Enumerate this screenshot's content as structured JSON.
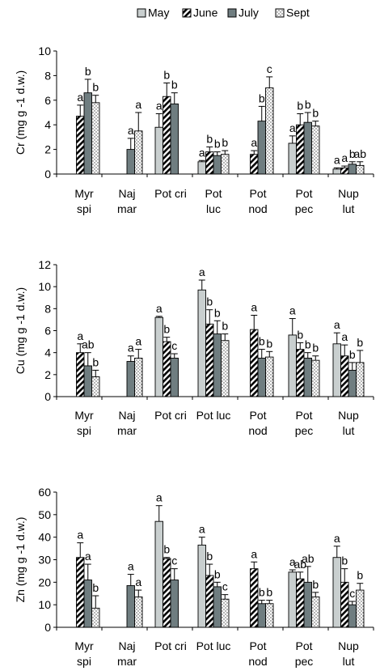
{
  "legend": {
    "position": "top",
    "items": [
      {
        "label": "May",
        "pattern": "light-grey"
      },
      {
        "label": "June",
        "pattern": "diagonal-hatch"
      },
      {
        "label": "July",
        "pattern": "dark-grey"
      },
      {
        "label": "Sept",
        "pattern": "dotted"
      }
    ]
  },
  "colors": {
    "may": "#c9cfcf",
    "july": "#6f7d80",
    "axis": "#000000",
    "background": "#ffffff"
  },
  "chart_data": [
    {
      "type": "bar",
      "ylabel": "Cr (mg g -1 d.w.)",
      "ylim": [
        0,
        10
      ],
      "yticks": [
        0,
        2,
        4,
        6,
        8,
        10
      ],
      "categories": [
        [
          "Myr",
          "spi"
        ],
        [
          "Naj",
          "mar"
        ],
        [
          "Pot cri"
        ],
        [
          "Pot",
          "luc"
        ],
        [
          "Pot",
          "nod"
        ],
        [
          "Pot",
          "pec"
        ],
        [
          "Nup",
          "lut"
        ]
      ],
      "series": [
        {
          "name": "May",
          "values": [
            null,
            null,
            3.8,
            1.0,
            null,
            2.5,
            0.4
          ],
          "errors": [
            null,
            null,
            1.1,
            0.1,
            null,
            0.6,
            0.1
          ]
        },
        {
          "name": "June",
          "values": [
            4.7,
            null,
            6.3,
            1.8,
            1.6,
            4.0,
            0.5
          ],
          "errors": [
            0.9,
            null,
            1.1,
            0.4,
            0.3,
            0.9,
            0.15
          ]
        },
        {
          "name": "July",
          "values": [
            6.6,
            2.0,
            5.7,
            1.5,
            4.3,
            4.2,
            0.8
          ],
          "errors": [
            1.1,
            0.9,
            0.9,
            0.3,
            1.2,
            0.8,
            0.2
          ]
        },
        {
          "name": "Sept",
          "values": [
            5.8,
            3.5,
            null,
            1.6,
            7.0,
            3.9,
            0.7
          ],
          "errors": [
            0.6,
            1.5,
            null,
            0.3,
            0.9,
            0.4,
            0.3
          ]
        }
      ],
      "annotations": [
        {
          "category": 0,
          "series": 1,
          "text": "a"
        },
        {
          "category": 0,
          "series": 2,
          "text": "b"
        },
        {
          "category": 0,
          "series": 3,
          "text": "b"
        },
        {
          "category": 1,
          "series": 2,
          "text": "a"
        },
        {
          "category": 1,
          "series": 3,
          "text": "a"
        },
        {
          "category": 2,
          "series": 0,
          "text": "a"
        },
        {
          "category": 2,
          "series": 1,
          "text": "b"
        },
        {
          "category": 2,
          "series": 2,
          "text": "b"
        },
        {
          "category": 3,
          "series": 0,
          "text": "a"
        },
        {
          "category": 3,
          "series": 1,
          "text": "b"
        },
        {
          "category": 3,
          "series": 2,
          "text": "b"
        },
        {
          "category": 3,
          "series": 3,
          "text": "b"
        },
        {
          "category": 4,
          "series": 1,
          "text": "a"
        },
        {
          "category": 4,
          "series": 2,
          "text": "b"
        },
        {
          "category": 4,
          "series": 3,
          "text": "c"
        },
        {
          "category": 5,
          "series": 0,
          "text": "a"
        },
        {
          "category": 5,
          "series": 1,
          "text": "b"
        },
        {
          "category": 5,
          "series": 2,
          "text": "b"
        },
        {
          "category": 5,
          "series": 3,
          "text": "b"
        },
        {
          "category": 6,
          "series": 0,
          "text": "a"
        },
        {
          "category": 6,
          "series": 1,
          "text": "a"
        },
        {
          "category": 6,
          "series": 2,
          "text": "b"
        },
        {
          "category": 6,
          "series": 3,
          "text": "ab"
        }
      ]
    },
    {
      "type": "bar",
      "ylabel": "Cu (mg g -1 d.w.)",
      "ylim": [
        0,
        12
      ],
      "yticks": [
        0,
        2,
        4,
        6,
        8,
        10,
        12
      ],
      "categories": [
        [
          "Myr",
          "spi"
        ],
        [
          "Naj",
          "mar"
        ],
        [
          "Pot cri"
        ],
        [
          "Pot luc"
        ],
        [
          "Pot",
          "nod"
        ],
        [
          "Pot",
          "pec"
        ],
        [
          "Nup",
          "lut"
        ]
      ],
      "series": [
        {
          "name": "May",
          "values": [
            null,
            null,
            7.2,
            9.7,
            null,
            5.6,
            4.8
          ],
          "errors": [
            null,
            null,
            0.1,
            0.9,
            null,
            1.5,
            1.0
          ]
        },
        {
          "name": "June",
          "values": [
            4.0,
            null,
            5.0,
            6.6,
            6.1,
            4.3,
            3.7
          ],
          "errors": [
            0.8,
            null,
            0.4,
            1.3,
            1.3,
            0.6,
            1.0
          ]
        },
        {
          "name": "July",
          "values": [
            2.8,
            3.2,
            3.5,
            5.7,
            3.5,
            3.5,
            2.4
          ],
          "errors": [
            1.2,
            0.5,
            0.4,
            1.2,
            0.8,
            0.5,
            0.7
          ]
        },
        {
          "name": "Sept",
          "values": [
            1.8,
            3.5,
            null,
            5.1,
            3.6,
            3.3,
            3.1
          ],
          "errors": [
            0.6,
            0.8,
            null,
            0.6,
            0.5,
            0.4,
            1.1
          ]
        }
      ],
      "annotations": [
        {
          "category": 0,
          "series": 1,
          "text": "a"
        },
        {
          "category": 0,
          "series": 2,
          "text": "ab"
        },
        {
          "category": 0,
          "series": 3,
          "text": "b"
        },
        {
          "category": 1,
          "series": 2,
          "text": "a"
        },
        {
          "category": 1,
          "series": 3,
          "text": "a"
        },
        {
          "category": 2,
          "series": 0,
          "text": "a"
        },
        {
          "category": 2,
          "series": 1,
          "text": "b"
        },
        {
          "category": 2,
          "series": 2,
          "text": "c"
        },
        {
          "category": 3,
          "series": 0,
          "text": "a"
        },
        {
          "category": 3,
          "series": 1,
          "text": "b"
        },
        {
          "category": 3,
          "series": 2,
          "text": "b"
        },
        {
          "category": 3,
          "series": 3,
          "text": "b"
        },
        {
          "category": 4,
          "series": 1,
          "text": "a"
        },
        {
          "category": 4,
          "series": 2,
          "text": "b"
        },
        {
          "category": 4,
          "series": 3,
          "text": "b"
        },
        {
          "category": 5,
          "series": 0,
          "text": "a"
        },
        {
          "category": 5,
          "series": 1,
          "text": "b"
        },
        {
          "category": 5,
          "series": 2,
          "text": "b"
        },
        {
          "category": 5,
          "series": 3,
          "text": "b"
        },
        {
          "category": 6,
          "series": 0,
          "text": "a"
        },
        {
          "category": 6,
          "series": 1,
          "text": "a"
        },
        {
          "category": 6,
          "series": 2,
          "text": "b"
        },
        {
          "category": 6,
          "series": 3,
          "text": "b"
        }
      ]
    },
    {
      "type": "bar",
      "ylabel": "Zn (mg g -1 d.w.)",
      "ylim": [
        0,
        60
      ],
      "yticks": [
        0,
        10,
        20,
        30,
        40,
        50,
        60
      ],
      "categories": [
        [
          "Myr",
          "spi"
        ],
        [
          "Naj",
          "mar"
        ],
        [
          "Pot cri"
        ],
        [
          "Pot luc"
        ],
        [
          "Pot",
          "nod"
        ],
        [
          "Pot",
          "pec"
        ],
        [
          "Nup",
          "lut"
        ]
      ],
      "series": [
        {
          "name": "May",
          "values": [
            null,
            null,
            47,
            36.5,
            null,
            24.5,
            31
          ],
          "errors": [
            null,
            null,
            7,
            3.5,
            null,
            1,
            5
          ]
        },
        {
          "name": "June",
          "values": [
            31,
            null,
            30.5,
            23,
            26,
            21.5,
            20
          ],
          "errors": [
            6.5,
            null,
            0.5,
            5,
            3,
            3,
            6
          ]
        },
        {
          "name": "July",
          "values": [
            21,
            18.5,
            21,
            18,
            10.5,
            20,
            10
          ],
          "errors": [
            7,
            5,
            5,
            2,
            1.5,
            7,
            1.5
          ]
        },
        {
          "name": "Sept",
          "values": [
            8.5,
            13.5,
            null,
            12.5,
            10.5,
            13.5,
            16.5
          ],
          "errors": [
            5.5,
            3,
            null,
            2,
            1.5,
            2,
            3
          ]
        }
      ],
      "annotations": [
        {
          "category": 0,
          "series": 1,
          "text": "a"
        },
        {
          "category": 0,
          "series": 2,
          "text": "a"
        },
        {
          "category": 0,
          "series": 3,
          "text": "b"
        },
        {
          "category": 1,
          "series": 2,
          "text": "a"
        },
        {
          "category": 1,
          "series": 3,
          "text": "a"
        },
        {
          "category": 2,
          "series": 0,
          "text": "a"
        },
        {
          "category": 2,
          "series": 1,
          "text": "b"
        },
        {
          "category": 2,
          "series": 2,
          "text": "c"
        },
        {
          "category": 3,
          "series": 0,
          "text": "a"
        },
        {
          "category": 3,
          "series": 1,
          "text": "b"
        },
        {
          "category": 3,
          "series": 2,
          "text": "b"
        },
        {
          "category": 3,
          "series": 3,
          "text": "c"
        },
        {
          "category": 4,
          "series": 1,
          "text": "a"
        },
        {
          "category": 4,
          "series": 2,
          "text": "b"
        },
        {
          "category": 4,
          "series": 3,
          "text": "b"
        },
        {
          "category": 5,
          "series": 0,
          "text": "a"
        },
        {
          "category": 5,
          "series": 1,
          "text": "ab"
        },
        {
          "category": 5,
          "series": 2,
          "text": "ab"
        },
        {
          "category": 5,
          "series": 3,
          "text": "b"
        },
        {
          "category": 6,
          "series": 0,
          "text": "a"
        },
        {
          "category": 6,
          "series": 1,
          "text": "b"
        },
        {
          "category": 6,
          "series": 2,
          "text": "c"
        },
        {
          "category": 6,
          "series": 3,
          "text": "b"
        }
      ]
    }
  ]
}
